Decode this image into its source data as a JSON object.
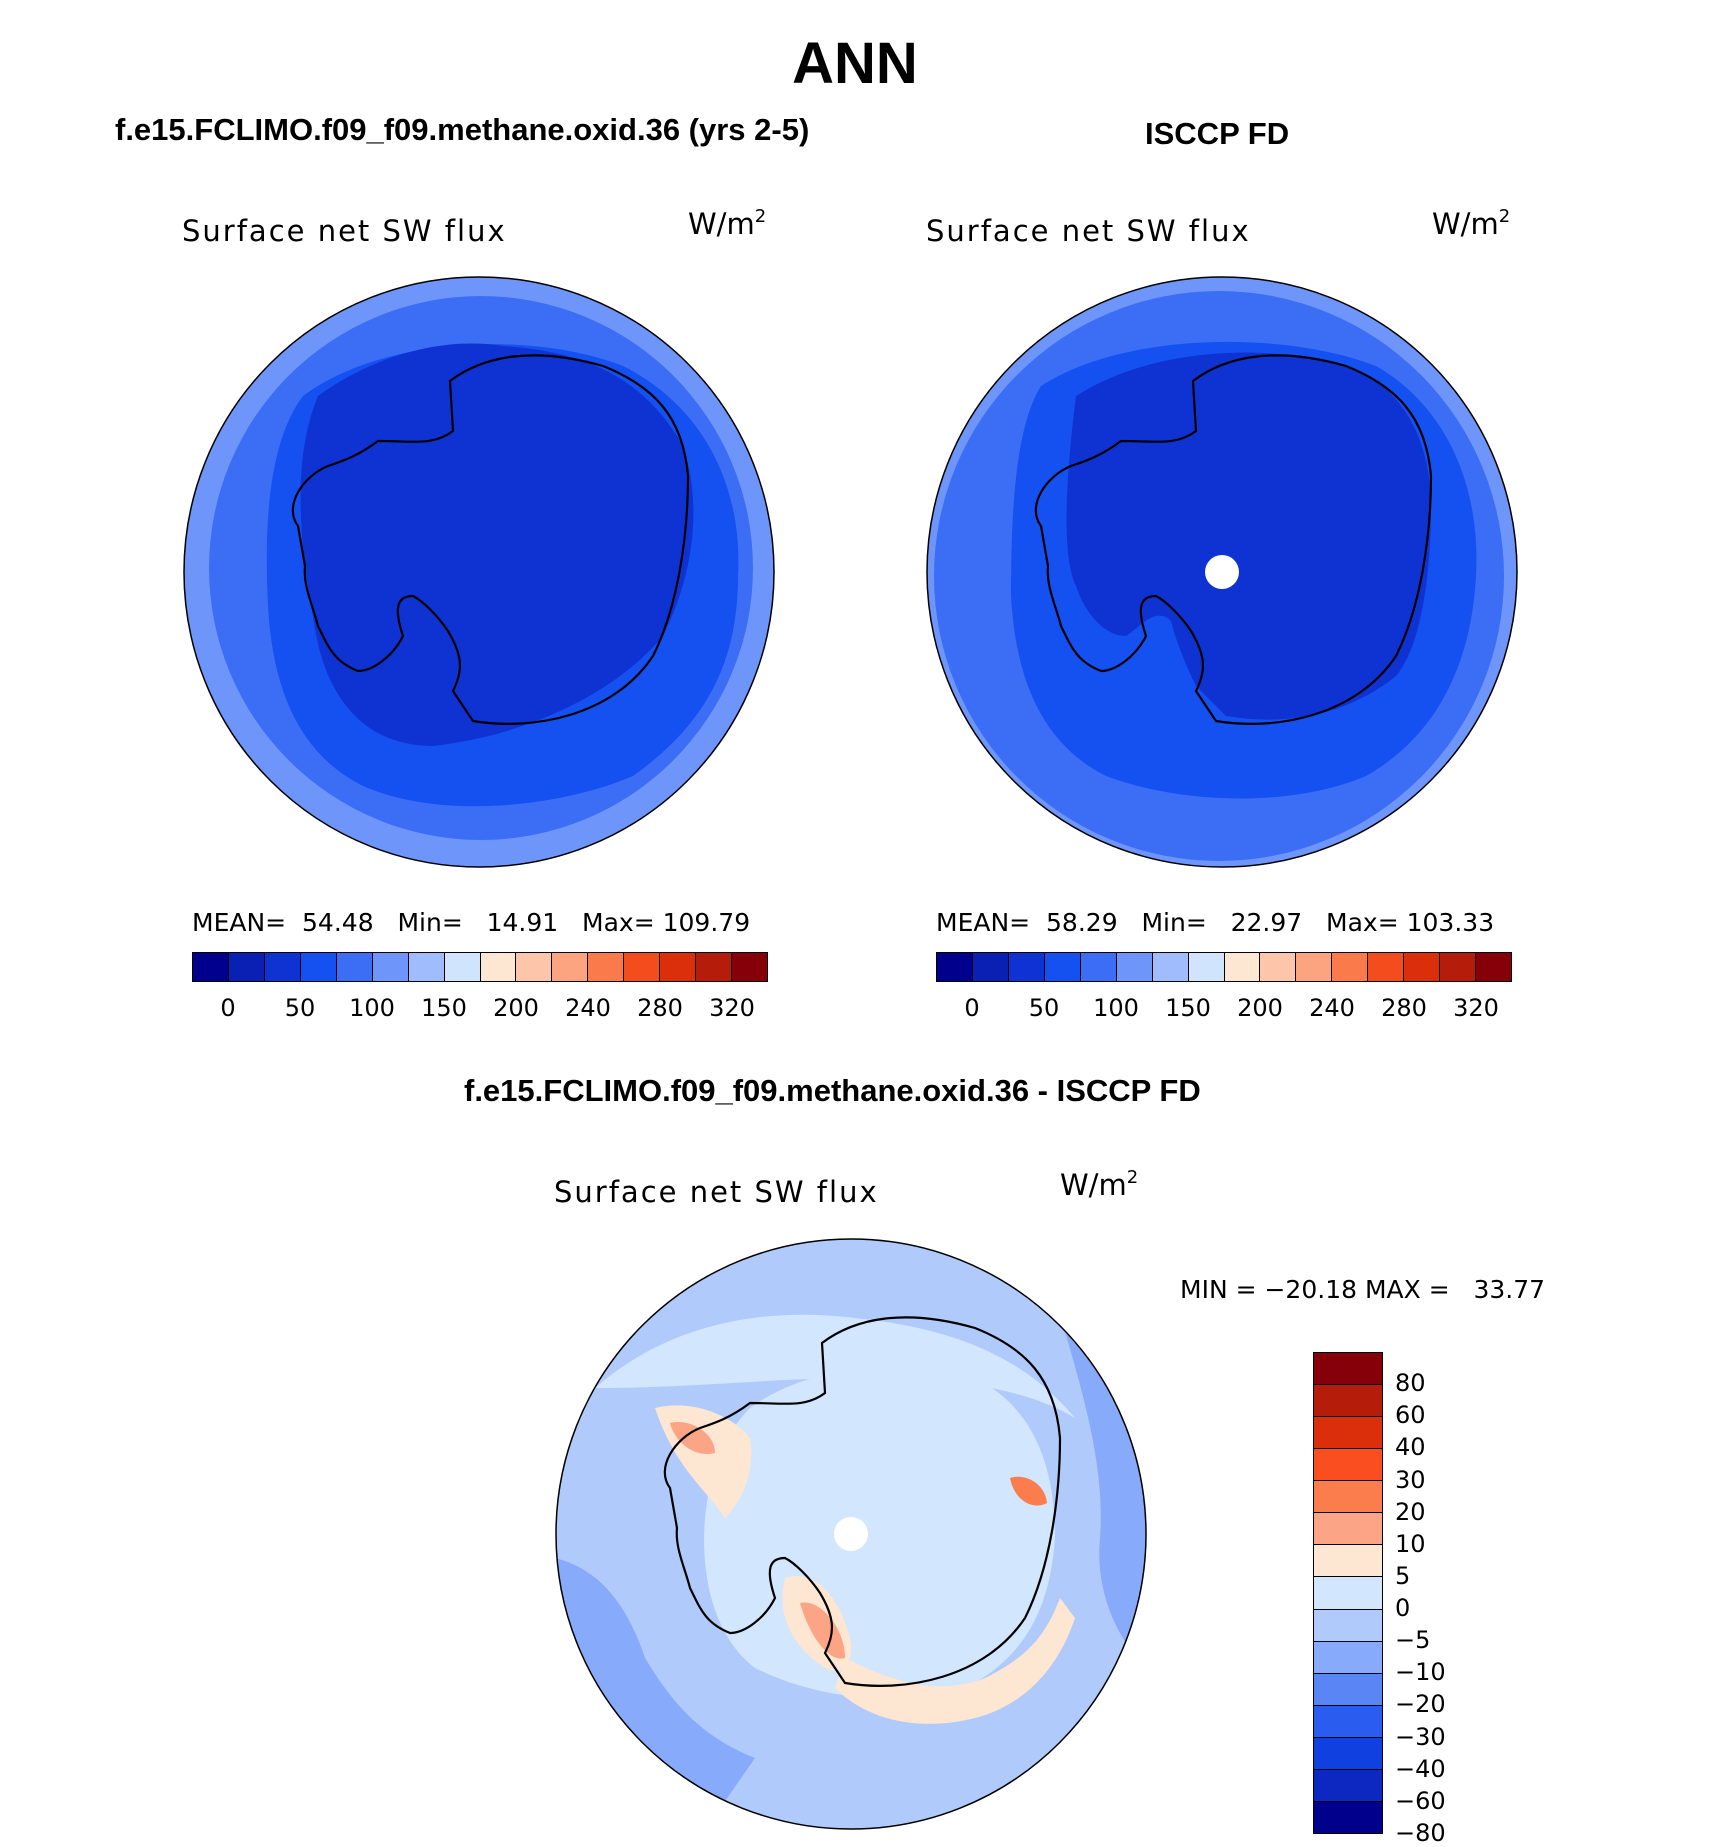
{
  "figure": {
    "title": "ANN",
    "panel1_title": "f.e15.FCLIMO.f09_f09.methane.oxid.36 (yrs 2-5)",
    "panel2_title": "ISCCP FD",
    "panel3_title": "f.e15.FCLIMO.f09_f09.methane.oxid.36 - ISCCP FD"
  },
  "chart_data": [
    {
      "type": "heatmap",
      "projection": "south-polar-stereographic",
      "variable": "Surface net SW flux",
      "units": "W/m",
      "units_exponent": "2",
      "stats": {
        "mean_label": "MEAN=",
        "mean": "54.48",
        "min_label": "Min=",
        "min": "14.91",
        "max_label": "Max=",
        "max": "109.79"
      },
      "colorbar": {
        "orientation": "horizontal",
        "tick_labels": [
          "0",
          "50",
          "100",
          "150",
          "200",
          "240",
          "280",
          "320"
        ],
        "colors": [
          "#00008c",
          "#0a1fb4",
          "#0f33d2",
          "#1550f0",
          "#3c6ef5",
          "#6e96fa",
          "#a0bcfc",
          "#d0e4fe",
          "#fde6d2",
          "#fdc6ab",
          "#fca37f",
          "#fb7a4c",
          "#f34d1e",
          "#db2e0a",
          "#b51d0a",
          "#850008"
        ]
      }
    },
    {
      "type": "heatmap",
      "projection": "south-polar-stereographic",
      "variable": "Surface net SW flux",
      "units": "W/m",
      "units_exponent": "2",
      "stats": {
        "mean_label": "MEAN=",
        "mean": "58.29",
        "min_label": "Min=",
        "min": "22.97",
        "max_label": "Max=",
        "max": "103.33"
      },
      "colorbar": {
        "orientation": "horizontal",
        "tick_labels": [
          "0",
          "50",
          "100",
          "150",
          "200",
          "240",
          "280",
          "320"
        ],
        "colors": [
          "#00008c",
          "#0a1fb4",
          "#0f33d2",
          "#1550f0",
          "#3c6ef5",
          "#6e96fa",
          "#a0bcfc",
          "#d0e4fe",
          "#fde6d2",
          "#fdc6ab",
          "#fca37f",
          "#fb7a4c",
          "#f34d1e",
          "#db2e0a",
          "#b51d0a",
          "#850008"
        ]
      }
    },
    {
      "type": "heatmap",
      "projection": "south-polar-stereographic",
      "variable": "Surface net SW flux",
      "units": "W/m",
      "units_exponent": "2",
      "stats": {
        "text": "MIN = −20.18 MAX =   33.77",
        "min": -20.18,
        "max": 33.77
      },
      "colorbar": {
        "orientation": "vertical",
        "tick_labels": [
          "80",
          "60",
          "40",
          "30",
          "20",
          "10",
          "5",
          "0",
          "−5",
          "−10",
          "−20",
          "−30",
          "−40",
          "−60",
          "−80"
        ],
        "colors": [
          "#850008",
          "#b51d0a",
          "#db2e0a",
          "#fb4e20",
          "#fb7d4e",
          "#fca586",
          "#fde6d2",
          "#d2e6fe",
          "#b0cafc",
          "#88aafb",
          "#5a86f5",
          "#2b5cf0",
          "#1040e0",
          "#0c28c0",
          "#00008c"
        ]
      }
    }
  ],
  "colors": {
    "land_dark": "#0f33d2",
    "ocean_mid": "#1550f0",
    "ocean_outer": "#3c6ef5",
    "rim": "#6e96fa",
    "diff_bg": "#b0cafc",
    "diff_light": "#d2e6fe",
    "diff_pos1": "#fde6d2",
    "diff_pos2": "#fca586",
    "diff_pos3": "#fb7d4e",
    "diff_neg": "#88aafb"
  }
}
